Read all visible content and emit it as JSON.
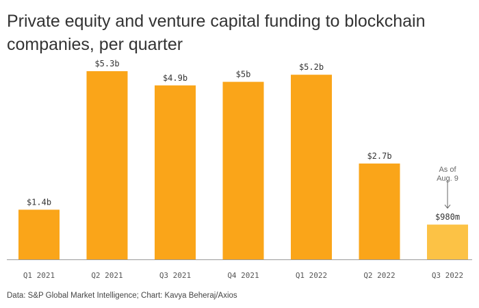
{
  "chart_data": {
    "type": "bar",
    "title": "Private equity and venture capital funding to blockchain companies, per quarter",
    "categories": [
      "Q1 2021",
      "Q2 2021",
      "Q3 2021",
      "Q4 2021",
      "Q1 2022",
      "Q2 2022",
      "Q3 2022"
    ],
    "values": [
      1.4,
      5.3,
      4.9,
      5.0,
      5.2,
      2.7,
      0.98
    ],
    "value_labels": [
      "$1.4b",
      "$5.3b",
      "$4.9b",
      "$5b",
      "$5.2b",
      "$2.7b",
      "$980m"
    ],
    "unit": "billion USD",
    "ylim": [
      0,
      5.3
    ],
    "grid": false,
    "colors": {
      "bar": "#FAA519",
      "highlight": "#FCC245"
    },
    "annotation": {
      "category": "Q3 2022",
      "lines": [
        "As of",
        "Aug. 9"
      ]
    },
    "source": "Data: S&P Global Market Intelligence; Chart: Kavya Beheraj/Axios"
  }
}
